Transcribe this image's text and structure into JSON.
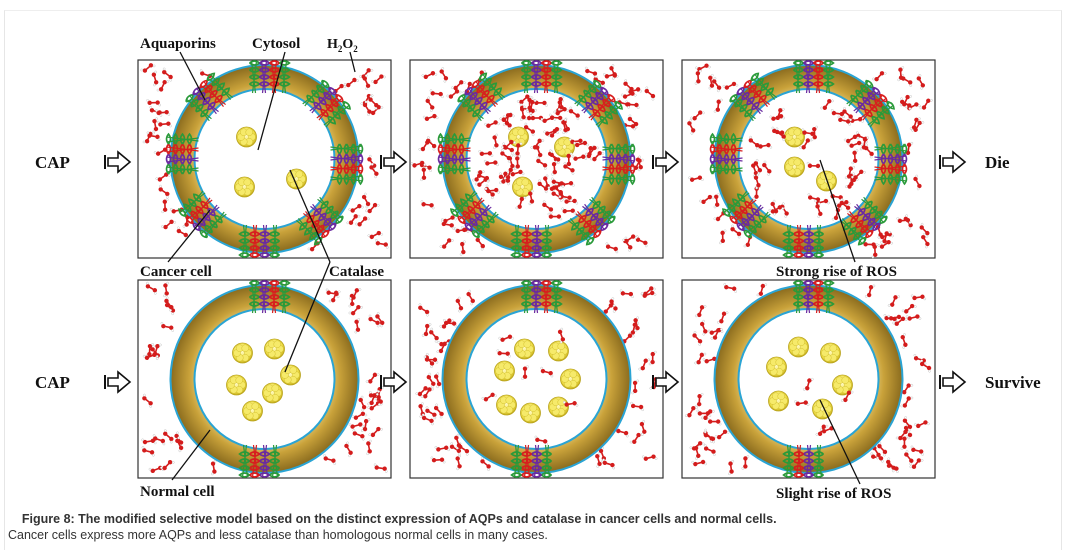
{
  "figure": {
    "row_labels": {
      "top": "CAP",
      "bottom": "CAP"
    },
    "outcomes": {
      "top": "Die",
      "bottom": "Survive"
    },
    "annotations": {
      "aquaporins": "Aquaporins",
      "cytosol": "Cytosol",
      "h2o2_prefix": "H",
      "h2o2_sub1": "2",
      "h2o2_mid": "O",
      "h2o2_sub2": "2",
      "cancer_cell": "Cancer cell",
      "catalase": "Catalase",
      "strong_rise": "Strong rise of ROS",
      "normal_cell": "Normal cell",
      "slight_rise": "Slight rise of ROS"
    },
    "colors": {
      "membrane_ring": "#c8a23c",
      "membrane_outline": "#2aa4d4",
      "h2o2_molecule": "#d41c1c",
      "catalase": "#f2e24a",
      "aqp_green": "#2a9a3a",
      "aqp_red": "#d81e1e",
      "aqp_purple": "#6a2aa0"
    }
  },
  "caption": {
    "title": "Figure 8: The modified selective model based on the distinct expression of AQPs and catalase in cancer cells and normal cells.",
    "body": "Cancer cells express more AQPs and less catalase than homologous normal cells in many cases."
  }
}
